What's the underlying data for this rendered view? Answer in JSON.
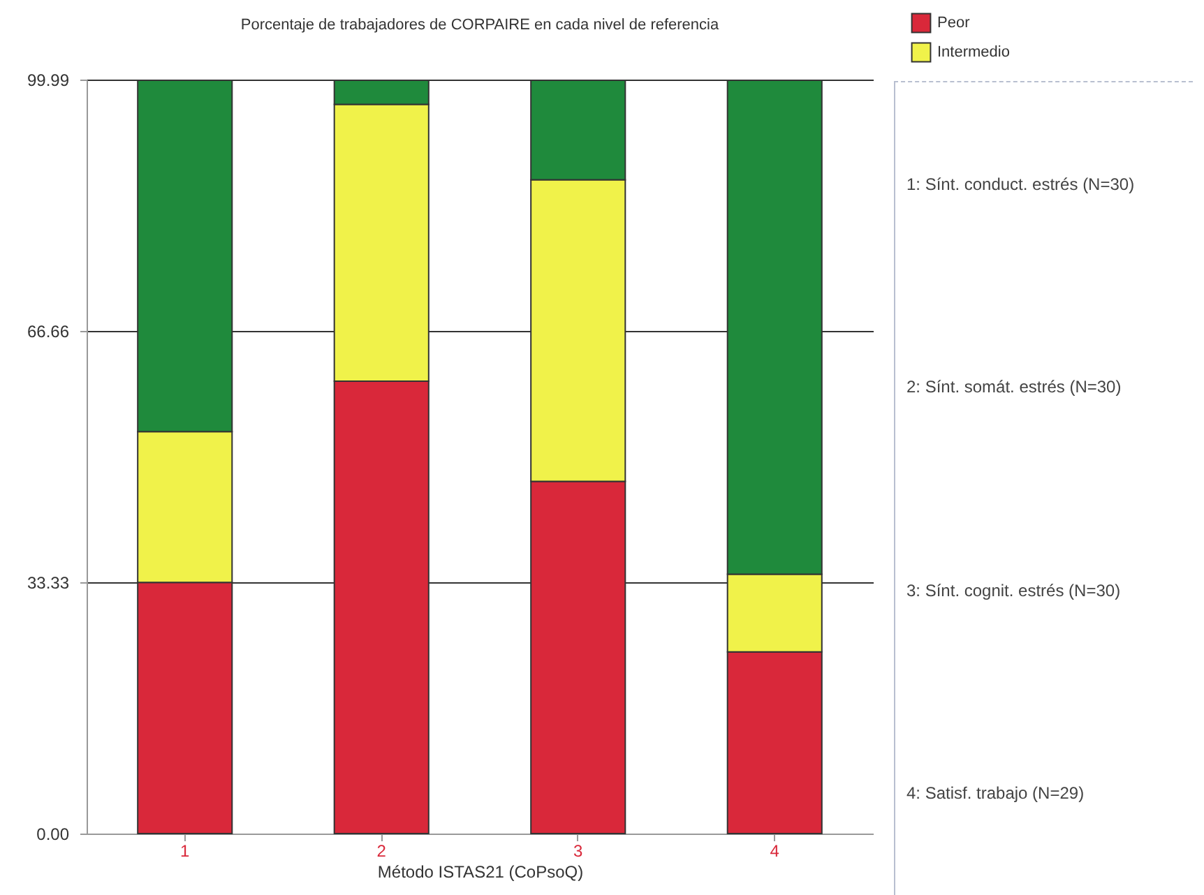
{
  "chart_data": {
    "type": "bar",
    "title": "Porcentaje de trabajadores de CORPAIRE en cada nivel de referencia",
    "xlabel": "Método ISTAS21 (CoPsoQ)",
    "categories": [
      "1",
      "2",
      "3",
      "4"
    ],
    "stacked": true,
    "series": [
      {
        "name": "Peor",
        "color": "#d9283a",
        "values": [
          33.3,
          60.0,
          46.7,
          24.1
        ]
      },
      {
        "name": "Intermedio",
        "color": "#f0f24a",
        "values": [
          20.0,
          36.7,
          40.0,
          10.3
        ]
      },
      {
        "color": "#1f8a3c",
        "values": [
          46.6,
          3.2,
          13.2,
          65.5
        ]
      }
    ],
    "ylim": [
      0,
      99.99
    ],
    "yticks": [
      {
        "value": 0,
        "label": "0.00"
      },
      33.33,
      66.66,
      99.99
    ],
    "grid": "y",
    "legend": "top right",
    "annotations": [
      "1: Sínt. conduct. estrés (N=30)",
      "2: Sínt. somát. estrés (N=30)",
      "3: Sínt. cognit. estrés (N=30)",
      "4: Satisf. trabajo (N=29)"
    ]
  }
}
